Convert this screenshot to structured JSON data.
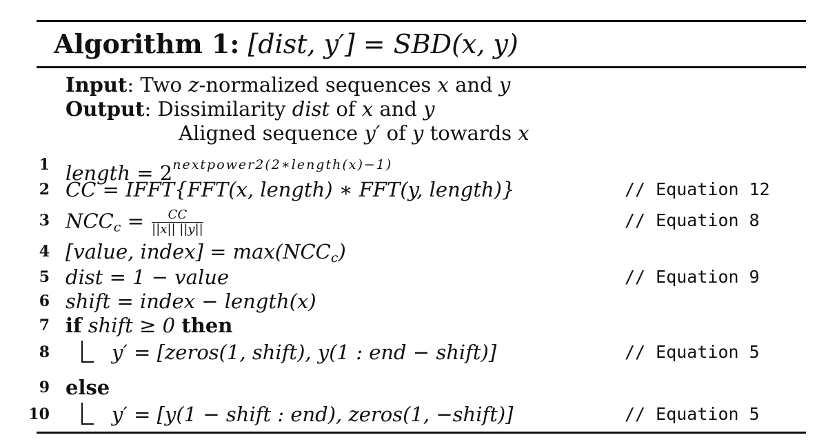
{
  "algorithm": {
    "label": "Algorithm 1:",
    "signature_left": "[dist, y′]",
    "signature_right": "SBD(x, y)"
  },
  "io": {
    "input_label": "Input",
    "input_text": ": Two ",
    "input_var": "z",
    "input_rest": "-normalized sequences ",
    "input_x": "x",
    "input_and": " and ",
    "input_y": "y",
    "output_label": "Output",
    "output_text": ": Dissimilarity ",
    "output_var": "dist",
    "output_of": " of ",
    "output_x": "x",
    "output_and": " and ",
    "output_y": "y",
    "output2_a": "Aligned sequence ",
    "output2_y": "y′",
    "output2_b": " of ",
    "output2_y2": "y",
    "output2_c": " towards ",
    "output2_x": "x"
  },
  "lines": [
    {
      "num": "1",
      "lhs": "length",
      "rhs_base": "2",
      "rhs_exp": "nextpower2(2∗length(x)−1)",
      "comment": ""
    },
    {
      "num": "2",
      "expr": "CC = IFFT{FFT(x, length) ∗ FFT(y, length)}",
      "comment": "// Equation 12"
    },
    {
      "num": "3",
      "lhs": "NCC",
      "sub": "c",
      "frac_num": "CC",
      "frac_den": "||x|| ||y||",
      "comment": "// Equation 8"
    },
    {
      "num": "4",
      "expr": "[value, index] = max(NCC",
      "sub": "c",
      "tail": ")",
      "comment": ""
    },
    {
      "num": "5",
      "expr": "dist = 1 − value",
      "comment": "// Equation 9"
    },
    {
      "num": "6",
      "expr": "shift = index − length(x)",
      "comment": ""
    },
    {
      "num": "7",
      "kw_if": "if",
      "cond": "shift ≥ 0",
      "kw_then": "then",
      "comment": ""
    },
    {
      "num": "8",
      "expr": "y′ = [zeros(1, shift), y(1 : end − shift)]",
      "comment": "// Equation 5"
    },
    {
      "num": "9",
      "kw_else": "else",
      "comment": ""
    },
    {
      "num": "10",
      "expr": "y′ = [y(1 − shift : end), zeros(1, −shift)]",
      "comment": "// Equation 5"
    }
  ]
}
